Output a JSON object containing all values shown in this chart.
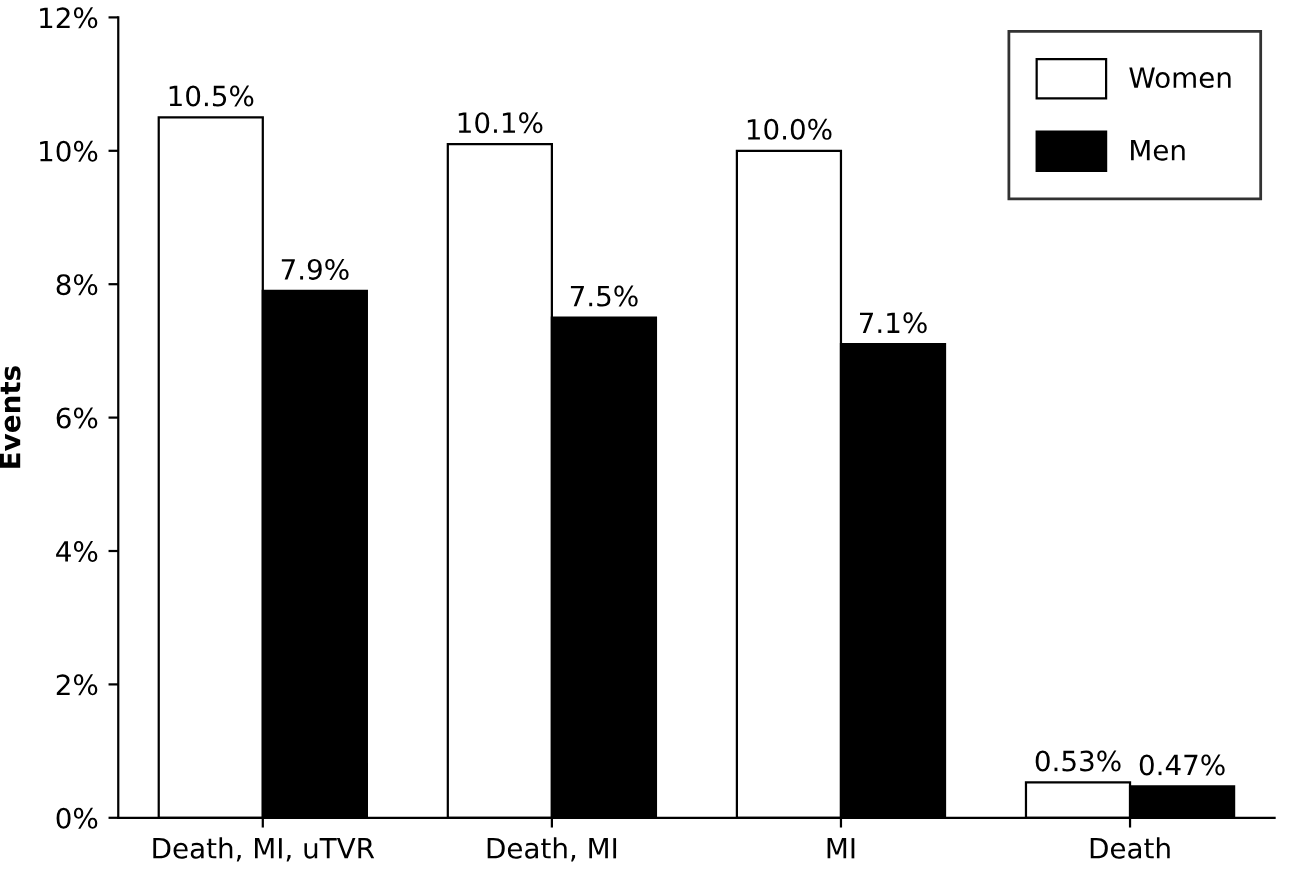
{
  "chart_data": {
    "type": "bar",
    "ylabel": "Events",
    "categories": [
      "Death, MI, uTVR",
      "Death, MI",
      "MI",
      "Death"
    ],
    "series": [
      {
        "name": "Women",
        "color": "#ffffff",
        "values": [
          10.5,
          10.1,
          10.0,
          0.53
        ],
        "value_labels": [
          "10.5%",
          "10.1%",
          "10.0%",
          "0.53%"
        ]
      },
      {
        "name": "Men",
        "color": "#000000",
        "values": [
          7.9,
          7.5,
          7.1,
          0.47
        ],
        "value_labels": [
          "7.9%",
          "7.5%",
          "7.1%",
          "0.47%"
        ]
      }
    ],
    "ylim": [
      0,
      12
    ],
    "yticks": [
      {
        "value": 0,
        "label": "0%"
      },
      {
        "value": 2,
        "label": "2%"
      },
      {
        "value": 4,
        "label": "4%"
      },
      {
        "value": 6,
        "label": "6%"
      },
      {
        "value": 8,
        "label": "8%"
      },
      {
        "value": 10,
        "label": "10%"
      },
      {
        "value": 12,
        "label": "12%"
      }
    ],
    "grid": false,
    "legend": "top right"
  }
}
